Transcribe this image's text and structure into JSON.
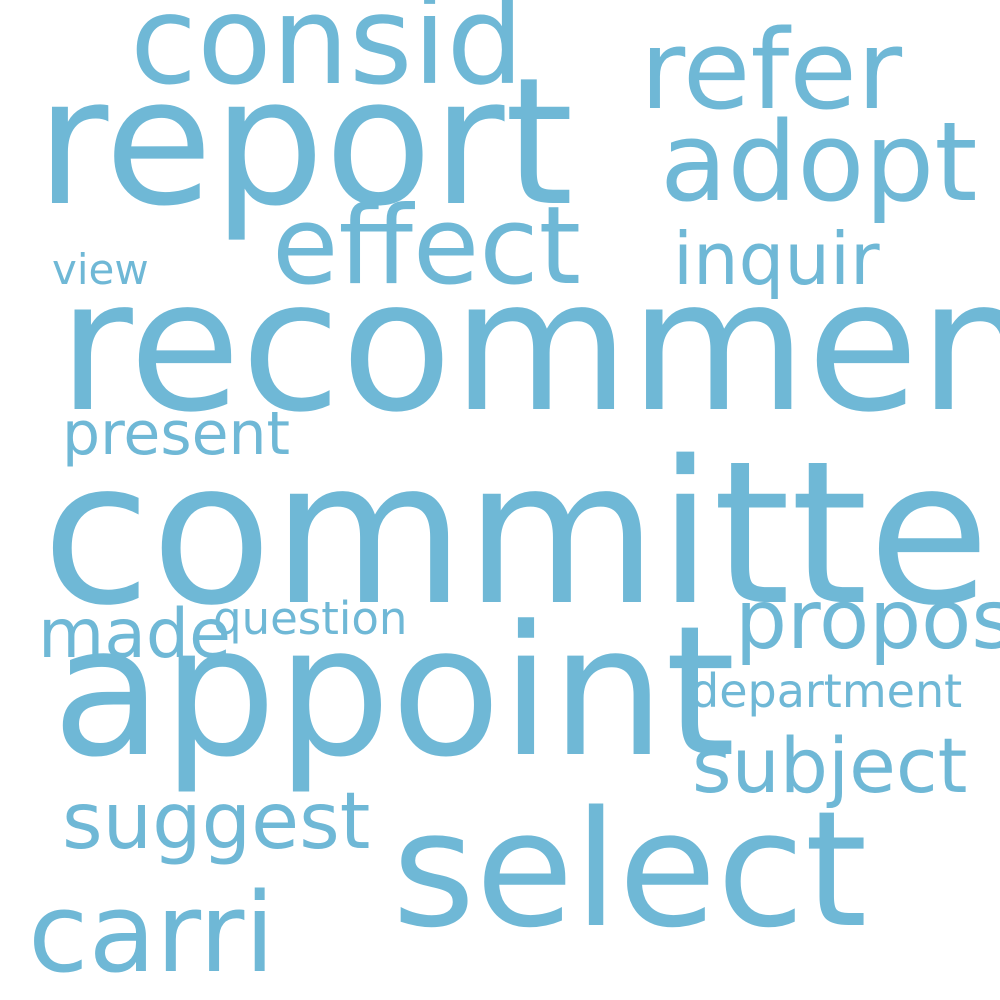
{
  "cloud": {
    "background": "#ffffff",
    "word_color": "#6fb8d6",
    "words": {
      "committe": "committe",
      "recommend": "recommend",
      "report": "report",
      "appoint": "appoint",
      "select": "select",
      "consid": "consid",
      "refer": "refer",
      "adopt": "adopt",
      "effect": "effect",
      "carri": "carri",
      "propos": "propos",
      "subject": "subject",
      "suggest": "suggest",
      "inquir": "inquir",
      "present": "present",
      "made": "made",
      "department": "department",
      "question": "question",
      "view": "view"
    }
  }
}
